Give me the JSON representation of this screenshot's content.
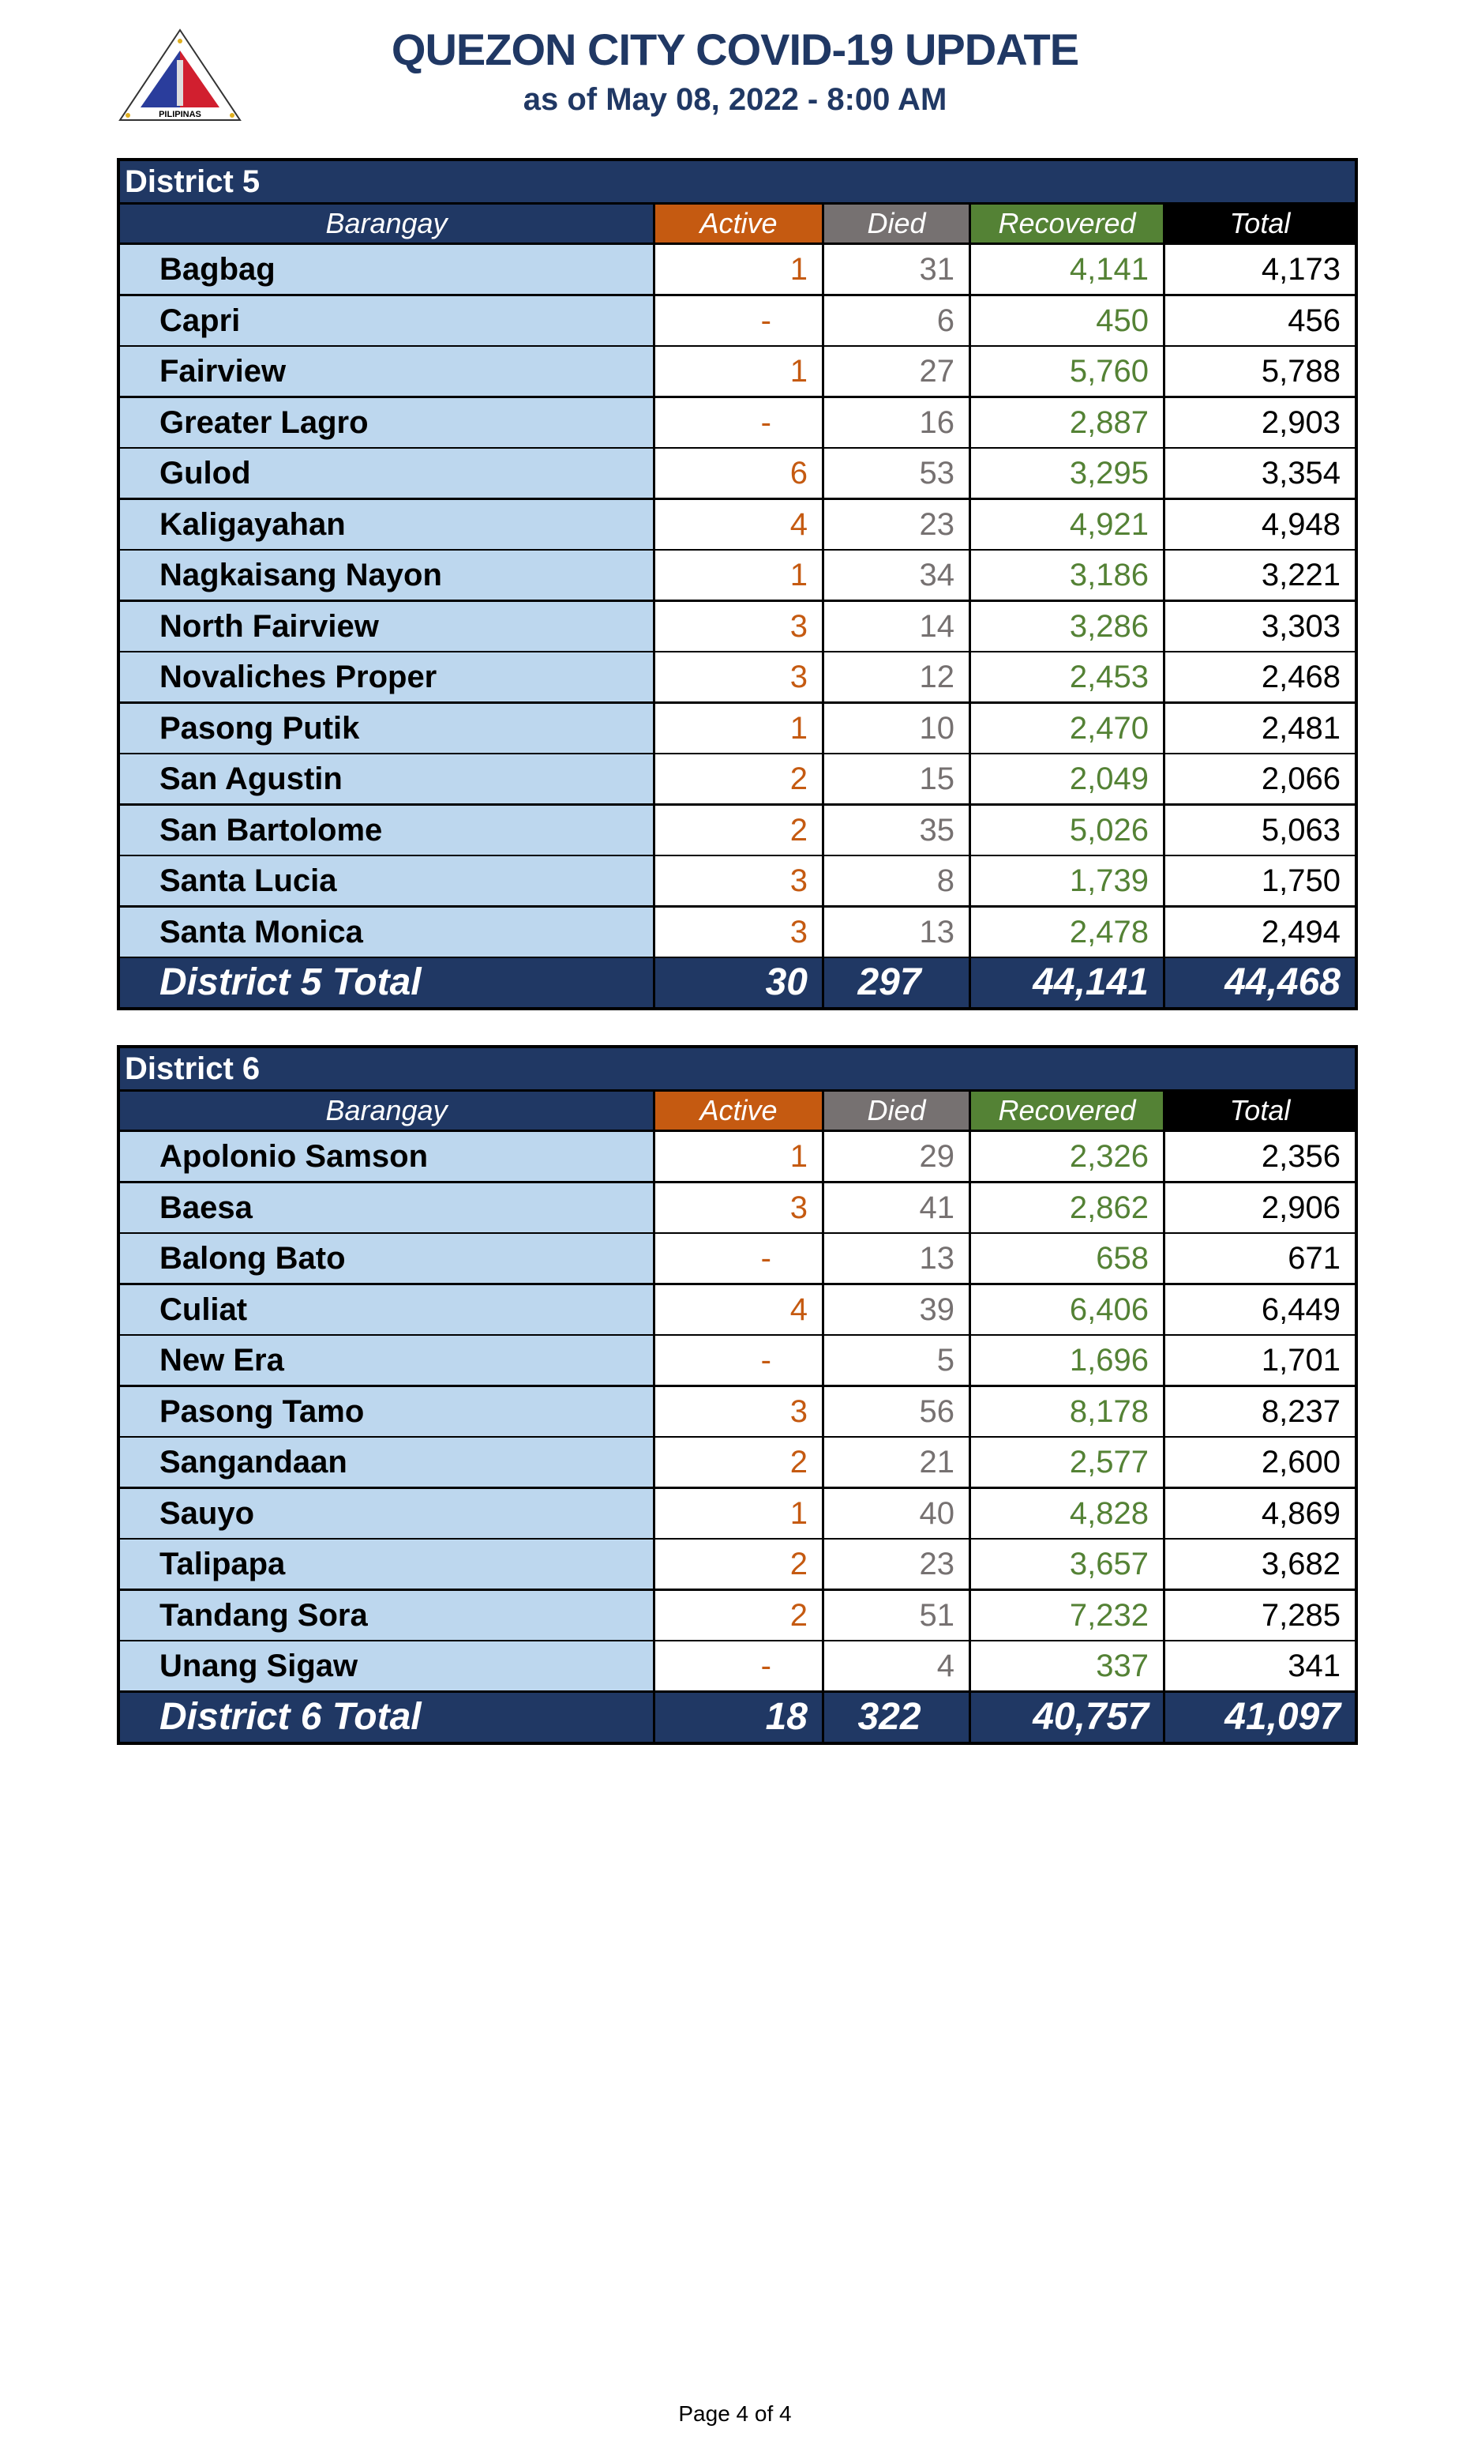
{
  "header": {
    "title": "QUEZON CITY COVID-19 UPDATE",
    "subtitle": "as of May 08, 2022 - 8:00 AM",
    "logo_text": "LUNGSOD QUEZON PILIPINAS"
  },
  "columns": [
    "Barangay",
    "Active",
    "Died",
    "Recovered",
    "Total"
  ],
  "colors": {
    "navy": "#203864",
    "light_blue": "#BDD7EE",
    "active": "#C55A11",
    "died": "#767171",
    "recovered": "#548235",
    "total": "#000000"
  },
  "districts": [
    {
      "name": "District 5",
      "rows": [
        [
          "Bagbag",
          "1",
          "31",
          "4,141",
          "4,173"
        ],
        [
          "Capri",
          "-",
          "6",
          "450",
          "456"
        ],
        [
          "Fairview",
          "1",
          "27",
          "5,760",
          "5,788"
        ],
        [
          "Greater Lagro",
          "-",
          "16",
          "2,887",
          "2,903"
        ],
        [
          "Gulod",
          "6",
          "53",
          "3,295",
          "3,354"
        ],
        [
          "Kaligayahan",
          "4",
          "23",
          "4,921",
          "4,948"
        ],
        [
          "Nagkaisang Nayon",
          "1",
          "34",
          "3,186",
          "3,221"
        ],
        [
          "North Fairview",
          "3",
          "14",
          "3,286",
          "3,303"
        ],
        [
          "Novaliches Proper",
          "3",
          "12",
          "2,453",
          "2,468"
        ],
        [
          "Pasong Putik",
          "1",
          "10",
          "2,470",
          "2,481"
        ],
        [
          "San Agustin",
          "2",
          "15",
          "2,049",
          "2,066"
        ],
        [
          "San Bartolome",
          "2",
          "35",
          "5,026",
          "5,063"
        ],
        [
          "Santa Lucia",
          "3",
          "8",
          "1,739",
          "1,750"
        ],
        [
          "Santa Monica",
          "3",
          "13",
          "2,478",
          "2,494"
        ]
      ],
      "total": [
        "District 5 Total",
        "30",
        "297",
        "44,141",
        "44,468"
      ]
    },
    {
      "name": "District 6",
      "rows": [
        [
          "Apolonio Samson",
          "1",
          "29",
          "2,326",
          "2,356"
        ],
        [
          "Baesa",
          "3",
          "41",
          "2,862",
          "2,906"
        ],
        [
          "Balong Bato",
          "-",
          "13",
          "658",
          "671"
        ],
        [
          "Culiat",
          "4",
          "39",
          "6,406",
          "6,449"
        ],
        [
          "New Era",
          "-",
          "5",
          "1,696",
          "1,701"
        ],
        [
          "Pasong Tamo",
          "3",
          "56",
          "8,178",
          "8,237"
        ],
        [
          "Sangandaan",
          "2",
          "21",
          "2,577",
          "2,600"
        ],
        [
          "Sauyo",
          "1",
          "40",
          "4,828",
          "4,869"
        ],
        [
          "Talipapa",
          "2",
          "23",
          "3,657",
          "3,682"
        ],
        [
          "Tandang Sora",
          "2",
          "51",
          "7,232",
          "7,285"
        ],
        [
          "Unang Sigaw",
          "-",
          "4",
          "337",
          "341"
        ]
      ],
      "total": [
        "District 6 Total",
        "18",
        "322",
        "40,757",
        "41,097"
      ]
    }
  ],
  "footer": {
    "page": "Page 4 of 4"
  }
}
